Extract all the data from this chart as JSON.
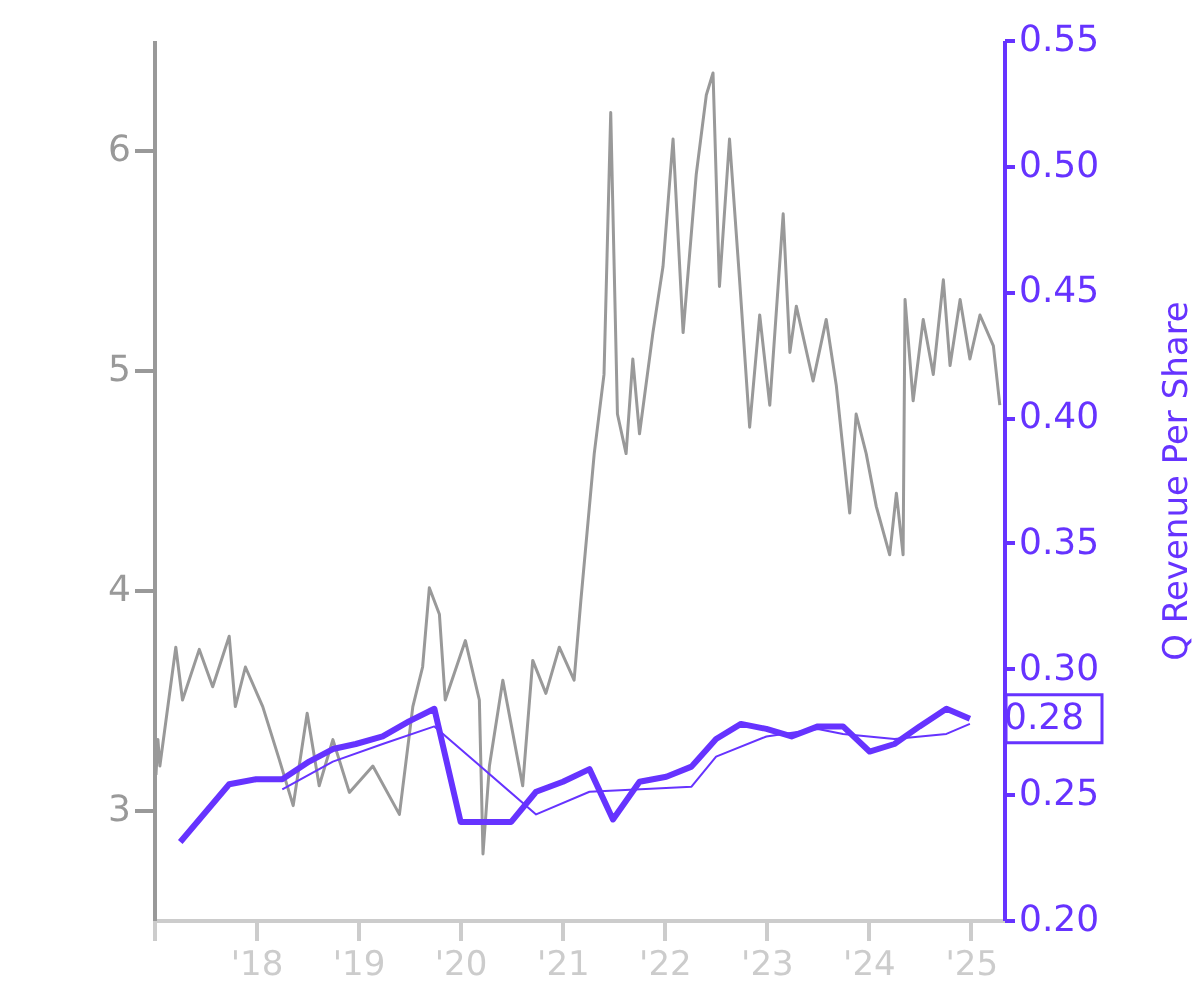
{
  "chart_data": {
    "type": "line",
    "y2label": "Q Revenue Per Share",
    "xlim": [
      "2017-01-01",
      "2025-04-30"
    ],
    "xticks": [
      {
        "value": "2017-01-01",
        "label": null
      },
      {
        "value": "2018-01-01",
        "label": "'18"
      },
      {
        "value": "2019-01-01",
        "label": "'19"
      },
      {
        "value": "2020-01-01",
        "label": "'20"
      },
      {
        "value": "2021-01-01",
        "label": "'21"
      },
      {
        "value": "2022-01-01",
        "label": "'22"
      },
      {
        "value": "2023-01-01",
        "label": "'23"
      },
      {
        "value": "2024-01-01",
        "label": "'24"
      },
      {
        "value": "2025-01-01",
        "label": "'25"
      }
    ],
    "ylim": [
      2.5,
      6.5
    ],
    "yticks": [
      3,
      4,
      5,
      6
    ],
    "y2lim": [
      0.2,
      0.55
    ],
    "y2ticks": [
      {
        "value": 0.2,
        "label": "0.20"
      },
      {
        "value": 0.25,
        "label": "0.25"
      },
      {
        "value": 0.3,
        "label": "0.30"
      },
      {
        "value": 0.35,
        "label": "0.35"
      },
      {
        "value": 0.4,
        "label": "0.40"
      },
      {
        "value": 0.45,
        "label": "0.45"
      },
      {
        "value": 0.5,
        "label": "0.50"
      },
      {
        "value": 0.55,
        "label": "0.55"
      }
    ],
    "grid": false,
    "series": [
      {
        "color": "#999999",
        "x": [
          "2017-01-08",
          "2017-01-15",
          "2017-01-22",
          "2017-03-20",
          "2017-04-13",
          "2017-06-12",
          "2017-07-30",
          "2017-09-27",
          "2017-10-19",
          "2017-11-24",
          "2018-01-25",
          "2018-03-25",
          "2018-05-14",
          "2018-07-03",
          "2018-08-15",
          "2018-10-03",
          "2018-12-01",
          "2019-02-23",
          "2019-05-29",
          "2019-07-16",
          "2019-08-20",
          "2019-09-13",
          "2019-10-19",
          "2019-11-09",
          "2020-01-20",
          "2020-03-10",
          "2020-03-23",
          "2020-04-15",
          "2020-06-02",
          "2020-08-12",
          "2020-09-17",
          "2020-11-03",
          "2020-12-21",
          "2021-02-12",
          "2021-03-08",
          "2021-04-25",
          "2021-05-30",
          "2021-06-23",
          "2021-07-17",
          "2021-08-17",
          "2021-09-10",
          "2021-10-04",
          "2021-11-21",
          "2021-12-27",
          "2022-02-01",
          "2022-03-09",
          "2022-04-25",
          "2022-05-31",
          "2022-06-24",
          "2022-07-17",
          "2022-08-22",
          "2022-09-27",
          "2022-11-02",
          "2022-12-08",
          "2023-01-13",
          "2023-03-02",
          "2023-03-26",
          "2023-04-18",
          "2023-06-17",
          "2023-08-03",
          "2023-09-08",
          "2023-10-26",
          "2023-11-18",
          "2023-12-24",
          "2024-01-29",
          "2024-03-17",
          "2024-04-10",
          "2024-05-04",
          "2024-05-11",
          "2024-06-09",
          "2024-07-15",
          "2024-08-20",
          "2024-09-25",
          "2024-10-19",
          "2024-11-24",
          "2024-12-29",
          "2025-02-03",
          "2025-03-23",
          "2025-04-15"
        ],
        "values": [
          3.16,
          3.32,
          3.2,
          3.74,
          3.5,
          3.73,
          3.56,
          3.79,
          3.47,
          3.65,
          3.47,
          3.23,
          3.02,
          3.44,
          3.11,
          3.32,
          3.08,
          3.2,
          2.98,
          3.47,
          3.65,
          4.01,
          3.89,
          3.5,
          3.77,
          3.5,
          2.8,
          3.2,
          3.59,
          3.11,
          3.68,
          3.53,
          3.74,
          3.59,
          3.95,
          4.62,
          4.98,
          6.17,
          4.8,
          4.62,
          5.05,
          4.71,
          5.17,
          5.47,
          6.05,
          5.17,
          5.89,
          6.25,
          6.35,
          5.38,
          6.05,
          5.41,
          4.74,
          5.25,
          4.84,
          5.71,
          5.08,
          5.29,
          4.95,
          5.23,
          4.93,
          4.35,
          4.8,
          4.62,
          4.38,
          4.16,
          4.44,
          4.16,
          5.32,
          4.86,
          5.23,
          4.98,
          5.41,
          5.02,
          5.32,
          5.05,
          5.25,
          5.11,
          4.84
        ]
      },
      {
        "color": "#6633ff",
        "axis": "y2",
        "x": [
          "2018-04-05",
          "2018-10-03",
          "2019-03-30",
          "2019-10-01",
          "2020-09-29",
          "2021-04-08",
          "2022-04-08",
          "2022-07-05",
          "2023-01-01",
          "2023-07-04",
          "2023-10-02",
          "2024-04-03",
          "2024-10-06",
          "2024-12-29"
        ],
        "values": [
          0.252,
          0.263,
          0.27,
          0.277,
          0.242,
          0.251,
          0.253,
          0.265,
          0.273,
          0.276,
          0.274,
          0.272,
          0.274,
          0.278
        ]
      },
      {
        "color": "#6633ff",
        "axis": "y2",
        "x": [
          "2017-04-05",
          "2017-09-27",
          "2018-01-01",
          "2018-04-05",
          "2018-07-10",
          "2018-10-03",
          "2018-12-24",
          "2019-03-30",
          "2019-07-02",
          "2019-10-01",
          "2020-01-03",
          "2020-04-03",
          "2020-07-02",
          "2020-09-29",
          "2021-01-03",
          "2021-04-08",
          "2021-07-01",
          "2021-10-04",
          "2022-01-08",
          "2022-04-08",
          "2022-07-05",
          "2022-10-02",
          "2023-01-01",
          "2023-04-01",
          "2023-07-04",
          "2023-10-02",
          "2024-01-05",
          "2024-04-03",
          "2024-07-02",
          "2024-10-06",
          "2024-12-29"
        ],
        "values": [
          0.231,
          0.254,
          0.256,
          0.256,
          0.263,
          0.268,
          0.27,
          0.273,
          0.279,
          0.284,
          0.239,
          0.239,
          0.239,
          0.251,
          0.255,
          0.26,
          0.24,
          0.255,
          0.257,
          0.261,
          0.272,
          0.278,
          0.276,
          0.273,
          0.277,
          0.277,
          0.267,
          0.27,
          0.277,
          0.284,
          0.28
        ],
        "value_labels": [
          null,
          null,
          null,
          null,
          null,
          null,
          null,
          null,
          null,
          null,
          null,
          null,
          null,
          null,
          null,
          null,
          null,
          null,
          null,
          null,
          null,
          null,
          null,
          null,
          null,
          null,
          null,
          null,
          null,
          null,
          "0.28"
        ]
      }
    ]
  }
}
